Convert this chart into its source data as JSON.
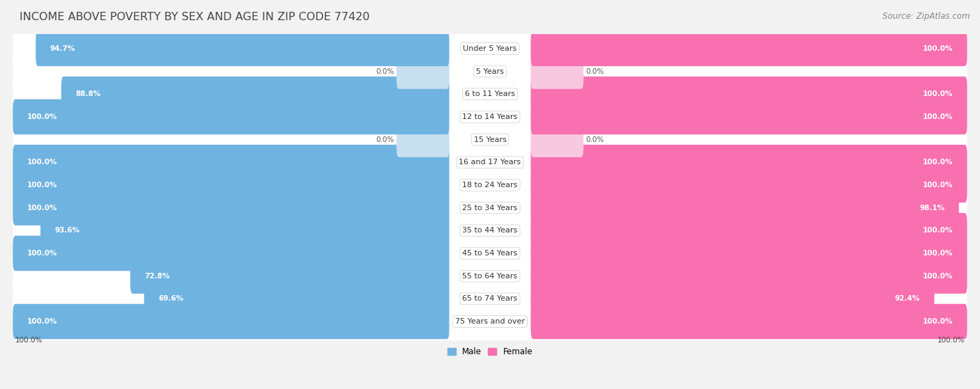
{
  "title": "INCOME ABOVE POVERTY BY SEX AND AGE IN ZIP CODE 77420",
  "source": "Source: ZipAtlas.com",
  "categories": [
    "Under 5 Years",
    "5 Years",
    "6 to 11 Years",
    "12 to 14 Years",
    "15 Years",
    "16 and 17 Years",
    "18 to 24 Years",
    "25 to 34 Years",
    "35 to 44 Years",
    "45 to 54 Years",
    "55 to 64 Years",
    "65 to 74 Years",
    "75 Years and over"
  ],
  "male_values": [
    94.7,
    0.0,
    88.8,
    100.0,
    0.0,
    100.0,
    100.0,
    100.0,
    93.6,
    100.0,
    72.8,
    69.6,
    100.0
  ],
  "female_values": [
    100.0,
    0.0,
    100.0,
    100.0,
    0.0,
    100.0,
    100.0,
    98.1,
    100.0,
    100.0,
    100.0,
    92.4,
    100.0
  ],
  "male_color": "#6fb3e0",
  "female_color": "#f870b0",
  "male_light_color": "#c8dff0",
  "female_light_color": "#f8c8e0",
  "bg_color": "#f2f2f2",
  "title_fontsize": 11.5,
  "source_fontsize": 8.5,
  "label_fontsize": 8,
  "value_fontsize": 7.5,
  "legend_label_male": "Male",
  "legend_label_female": "Female",
  "footer_male_value": "100.0%",
  "footer_female_value": "100.0%"
}
